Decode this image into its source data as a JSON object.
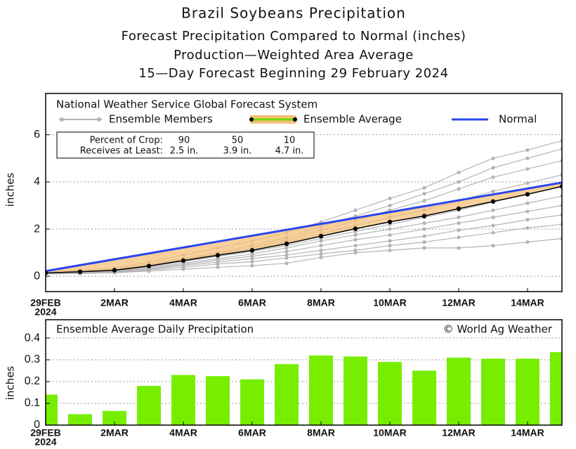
{
  "chart_data": [
    {
      "type": "line",
      "title": "Brazil Soybeans Precipitation",
      "subtitles": [
        "Forecast Precipitation Compared to Normal (inches)",
        "Production—Weighted Area Average",
        "15—Day Forecast Beginning 29 February 2024"
      ],
      "annotation": "National Weather Service Global Forecast System",
      "ylabel": "inches",
      "categories": [
        "29FEB",
        null,
        "2MAR",
        null,
        "4MAR",
        null,
        "6MAR",
        null,
        "8MAR",
        null,
        "10MAR",
        null,
        "12MAR",
        null,
        "14MAR",
        null
      ],
      "year": "2024",
      "ylim": [
        -0.65,
        7.75
      ],
      "yticks": [
        0,
        2,
        4,
        6
      ],
      "grid": true,
      "table": {
        "rows": [
          [
            "Percent of Crop:",
            "90",
            "50",
            "10"
          ],
          [
            "Receives at Least:",
            "2.5 in.",
            "3.9 in.",
            "4.7 in."
          ]
        ]
      },
      "members": {
        "name": "Ensemble Members",
        "color": "#b4b4b4",
        "values": [
          [
            0.2,
            0.25,
            0.35,
            0.6,
            0.9,
            1.2,
            1.5,
            1.85,
            2.3,
            2.8,
            3.3,
            3.75,
            4.4,
            5.0,
            5.35,
            5.75
          ],
          [
            0.18,
            0.22,
            0.3,
            0.5,
            0.75,
            1.0,
            1.3,
            1.65,
            2.1,
            2.55,
            3.0,
            3.5,
            4.0,
            4.6,
            5.0,
            5.4
          ],
          [
            0.16,
            0.2,
            0.28,
            0.48,
            0.7,
            0.95,
            1.2,
            1.55,
            1.95,
            2.35,
            2.8,
            3.2,
            3.7,
            4.2,
            4.55,
            4.9
          ],
          [
            0.15,
            0.2,
            0.27,
            0.45,
            0.68,
            0.9,
            1.12,
            1.45,
            1.8,
            2.15,
            2.5,
            2.8,
            3.2,
            3.6,
            3.95,
            4.3
          ],
          [
            0.14,
            0.18,
            0.25,
            0.42,
            0.62,
            0.85,
            1.05,
            1.3,
            1.6,
            1.9,
            2.2,
            2.5,
            2.8,
            3.15,
            3.5,
            3.8
          ],
          [
            0.13,
            0.17,
            0.22,
            0.38,
            0.55,
            0.75,
            0.95,
            1.2,
            1.5,
            1.75,
            2.0,
            2.25,
            2.5,
            2.8,
            3.1,
            3.4
          ],
          [
            0.12,
            0.15,
            0.2,
            0.33,
            0.5,
            0.68,
            0.85,
            1.05,
            1.3,
            1.55,
            1.75,
            2.0,
            2.25,
            2.5,
            2.75,
            3.0
          ],
          [
            0.11,
            0.14,
            0.18,
            0.3,
            0.45,
            0.6,
            0.75,
            0.9,
            1.1,
            1.3,
            1.5,
            1.7,
            1.95,
            2.15,
            2.4,
            2.6
          ],
          [
            0.1,
            0.12,
            0.16,
            0.26,
            0.38,
            0.52,
            0.62,
            0.78,
            0.95,
            1.1,
            1.3,
            1.45,
            1.65,
            1.85,
            2.05,
            2.2
          ],
          [
            0.1,
            0.12,
            0.15,
            0.22,
            0.3,
            0.38,
            0.45,
            0.55,
            0.8,
            1.0,
            1.1,
            1.2,
            1.2,
            1.3,
            1.45,
            1.6
          ]
        ]
      },
      "series": [
        {
          "name": "Ensemble Average",
          "color": "#000000",
          "legend_color": "#66dd00",
          "band_color": "#f5c07a",
          "values": [
            0.14,
            0.19,
            0.255,
            0.435,
            0.665,
            0.89,
            1.1,
            1.38,
            1.7,
            2.015,
            2.305,
            2.555,
            2.865,
            3.17,
            3.475,
            3.81
          ]
        },
        {
          "name": "Normal",
          "color": "#2a44ee",
          "values": [
            0.22,
            0.47,
            0.72,
            0.97,
            1.22,
            1.47,
            1.72,
            1.97,
            2.22,
            2.47,
            2.72,
            2.97,
            3.22,
            3.47,
            3.72,
            3.97
          ]
        }
      ]
    },
    {
      "type": "bar",
      "annotation": "Ensemble Average Daily Precipitation",
      "credit": "© World Ag Weather",
      "ylabel": "inches",
      "categories": [
        "29FEB",
        null,
        "2MAR",
        null,
        "4MAR",
        null,
        "6MAR",
        null,
        "8MAR",
        null,
        "10MAR",
        null,
        "12MAR",
        null,
        "14MAR",
        null
      ],
      "year": "2024",
      "ylim": [
        0,
        0.484
      ],
      "yticks": [
        0,
        0.1,
        0.2,
        0.3,
        0.4
      ],
      "grid": true,
      "color": "#77ee00",
      "values": [
        0.14,
        0.05,
        0.065,
        0.18,
        0.23,
        0.225,
        0.21,
        0.28,
        0.32,
        0.315,
        0.29,
        0.25,
        0.31,
        0.305,
        0.305,
        0.335
      ]
    }
  ]
}
